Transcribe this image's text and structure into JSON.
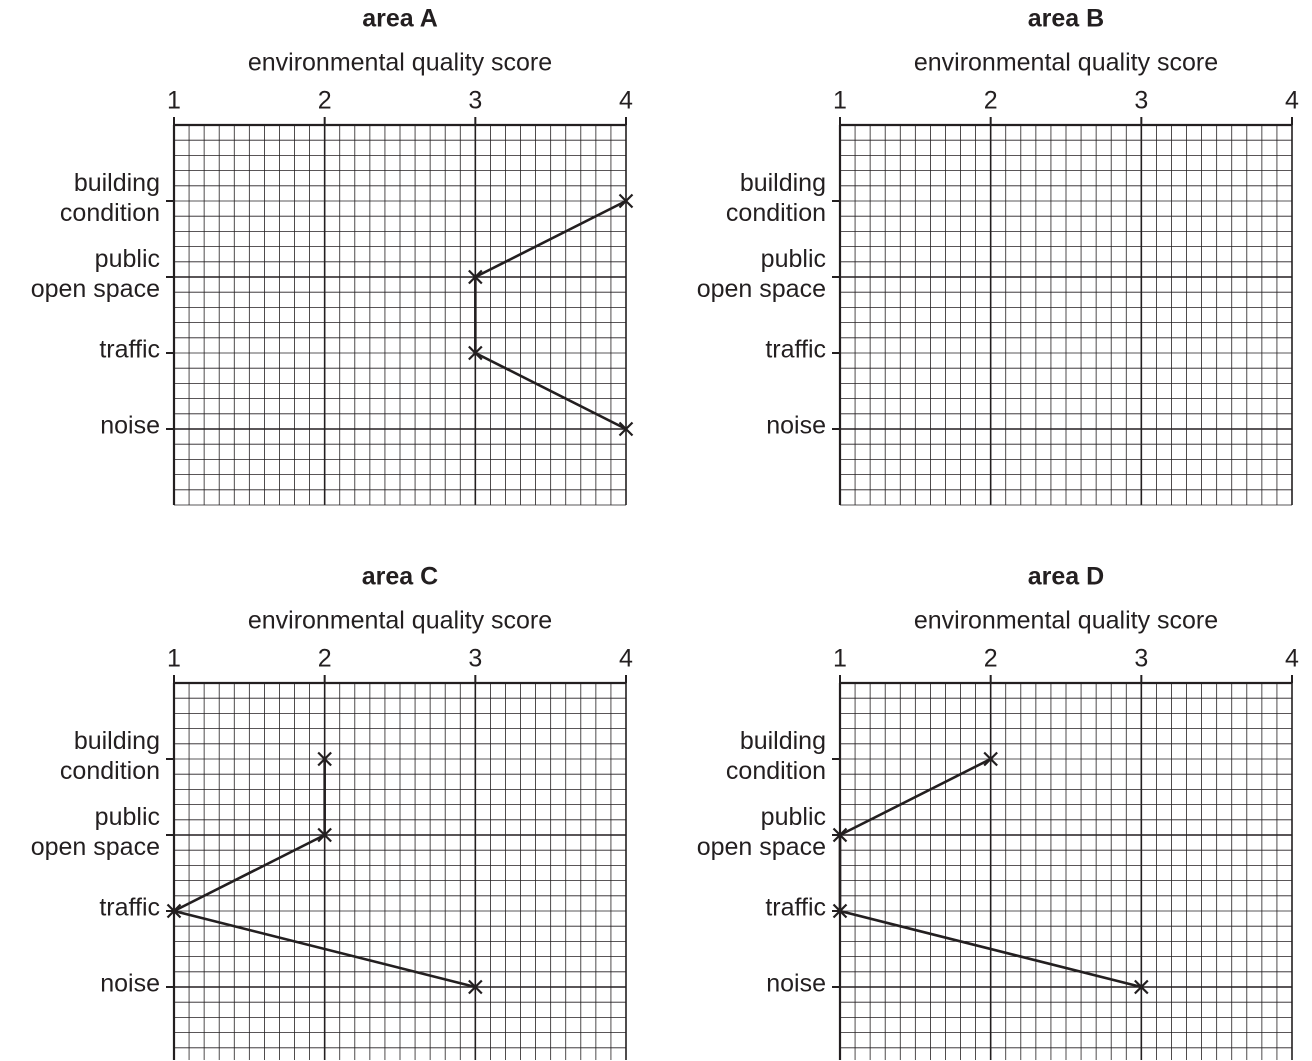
{
  "chart_data": [
    {
      "type": "line",
      "title": "area A",
      "x_label": "environmental quality score",
      "categories": [
        "building\ncondition",
        "public\nopen space",
        "traffic",
        "noise"
      ],
      "series": [
        {
          "color": "#231f20",
          "values": [
            4,
            3,
            3,
            4
          ]
        }
      ],
      "xlim": [
        1,
        4
      ],
      "xticks": [
        1,
        2,
        3,
        4
      ],
      "grid": true
    },
    {
      "type": "line",
      "title": "area B",
      "x_label": "environmental quality score",
      "categories": [
        "building\ncondition",
        "public\nopen space",
        "traffic",
        "noise"
      ],
      "series": [
        {
          "color": "#231f20",
          "values": [
            null,
            null,
            null,
            null
          ]
        }
      ],
      "xlim": [
        1,
        4
      ],
      "xticks": [
        1,
        2,
        3,
        4
      ],
      "grid": true
    },
    {
      "type": "line",
      "title": "area C",
      "x_label": "environmental quality score",
      "categories": [
        "building\ncondition",
        "public\nopen space",
        "traffic",
        "noise"
      ],
      "series": [
        {
          "color": "#231f20",
          "values": [
            2,
            2,
            1,
            3
          ]
        }
      ],
      "xlim": [
        1,
        4
      ],
      "xticks": [
        1,
        2,
        3,
        4
      ],
      "grid": true
    },
    {
      "type": "line",
      "title": "area D",
      "x_label": "environmental quality score",
      "categories": [
        "building\ncondition",
        "public\nopen space",
        "traffic",
        "noise"
      ],
      "series": [
        {
          "color": "#231f20",
          "values": [
            2,
            1,
            1,
            3
          ]
        }
      ],
      "xlim": [
        1,
        4
      ],
      "xticks": [
        1,
        2,
        3,
        4
      ],
      "grid": true
    }
  ]
}
